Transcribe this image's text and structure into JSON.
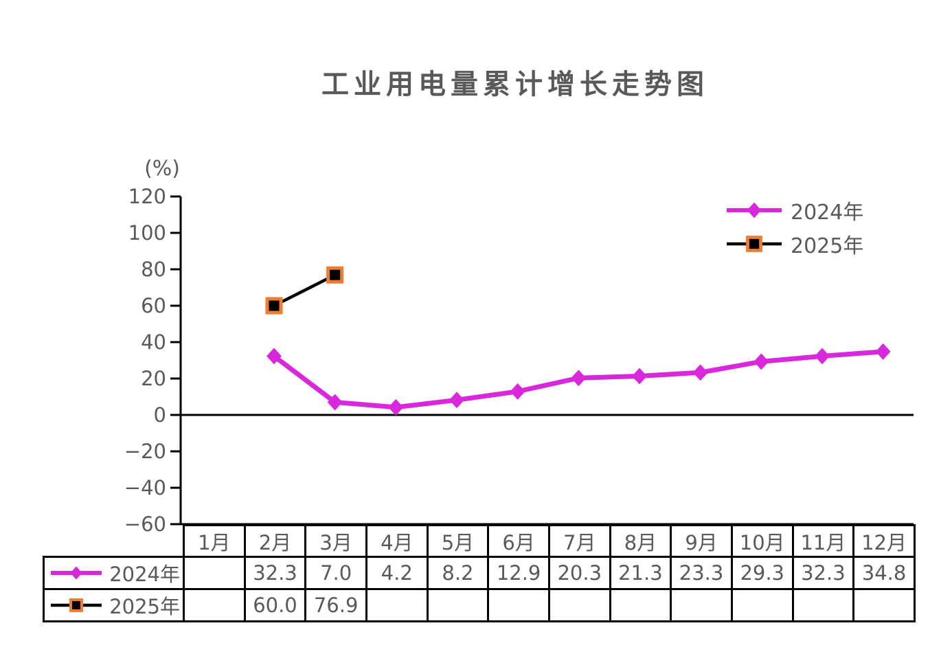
{
  "chart_data": {
    "type": "line",
    "title": "工业用电量累计增长走势图",
    "y_axis_unit": "(%)",
    "xlabel": "",
    "ylabel": "(%)",
    "ylim": [
      -60,
      120
    ],
    "y_tick_step": 20,
    "y_tick_labels": [
      "120",
      "100",
      "80",
      "60",
      "40",
      "20",
      "0",
      "−20",
      "−40",
      "−60"
    ],
    "categories": [
      "1月",
      "2月",
      "3月",
      "4月",
      "5月",
      "6月",
      "7月",
      "8月",
      "9月",
      "10月",
      "11月",
      "12月"
    ],
    "series": [
      {
        "name": "2024年",
        "color": "#D928DC",
        "marker": "diamond",
        "values": [
          null,
          32.3,
          7.0,
          4.2,
          8.2,
          12.9,
          20.3,
          21.3,
          23.3,
          29.3,
          32.3,
          34.8
        ]
      },
      {
        "name": "2025年",
        "color": "#000000",
        "marker": "square",
        "marker_fill": "#000000",
        "marker_border": "#ED7D31",
        "values": [
          null,
          60.0,
          76.9,
          null,
          null,
          null,
          null,
          null,
          null,
          null,
          null,
          null
        ]
      }
    ],
    "legend_position": "top-right",
    "grid": false,
    "data_table": true,
    "text_color": "#595959",
    "axis_color": "#000000",
    "background_color": "#ffffff"
  }
}
